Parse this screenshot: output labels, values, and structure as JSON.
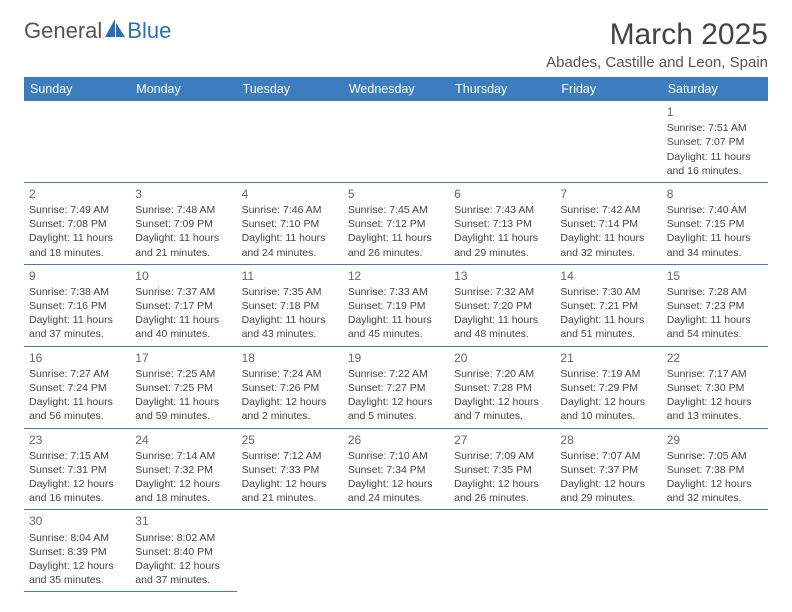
{
  "logo": {
    "text1": "General",
    "text2": "Blue",
    "accent": "#2a6fb5"
  },
  "title": "March 2025",
  "location": "Abades, Castille and Leon, Spain",
  "colors": {
    "header_bg": "#3c7dbf",
    "header_text": "#ffffff",
    "border": "#3c7dbf",
    "text": "#444444",
    "bg": "#ffffff"
  },
  "weekdays": [
    "Sunday",
    "Monday",
    "Tuesday",
    "Wednesday",
    "Thursday",
    "Friday",
    "Saturday"
  ],
  "weeks": [
    [
      null,
      null,
      null,
      null,
      null,
      null,
      {
        "n": "1",
        "sr": "7:51 AM",
        "ss": "7:07 PM",
        "dl": "11 hours and 16 minutes."
      }
    ],
    [
      {
        "n": "2",
        "sr": "7:49 AM",
        "ss": "7:08 PM",
        "dl": "11 hours and 18 minutes."
      },
      {
        "n": "3",
        "sr": "7:48 AM",
        "ss": "7:09 PM",
        "dl": "11 hours and 21 minutes."
      },
      {
        "n": "4",
        "sr": "7:46 AM",
        "ss": "7:10 PM",
        "dl": "11 hours and 24 minutes."
      },
      {
        "n": "5",
        "sr": "7:45 AM",
        "ss": "7:12 PM",
        "dl": "11 hours and 26 minutes."
      },
      {
        "n": "6",
        "sr": "7:43 AM",
        "ss": "7:13 PM",
        "dl": "11 hours and 29 minutes."
      },
      {
        "n": "7",
        "sr": "7:42 AM",
        "ss": "7:14 PM",
        "dl": "11 hours and 32 minutes."
      },
      {
        "n": "8",
        "sr": "7:40 AM",
        "ss": "7:15 PM",
        "dl": "11 hours and 34 minutes."
      }
    ],
    [
      {
        "n": "9",
        "sr": "7:38 AM",
        "ss": "7:16 PM",
        "dl": "11 hours and 37 minutes."
      },
      {
        "n": "10",
        "sr": "7:37 AM",
        "ss": "7:17 PM",
        "dl": "11 hours and 40 minutes."
      },
      {
        "n": "11",
        "sr": "7:35 AM",
        "ss": "7:18 PM",
        "dl": "11 hours and 43 minutes."
      },
      {
        "n": "12",
        "sr": "7:33 AM",
        "ss": "7:19 PM",
        "dl": "11 hours and 45 minutes."
      },
      {
        "n": "13",
        "sr": "7:32 AM",
        "ss": "7:20 PM",
        "dl": "11 hours and 48 minutes."
      },
      {
        "n": "14",
        "sr": "7:30 AM",
        "ss": "7:21 PM",
        "dl": "11 hours and 51 minutes."
      },
      {
        "n": "15",
        "sr": "7:28 AM",
        "ss": "7:23 PM",
        "dl": "11 hours and 54 minutes."
      }
    ],
    [
      {
        "n": "16",
        "sr": "7:27 AM",
        "ss": "7:24 PM",
        "dl": "11 hours and 56 minutes."
      },
      {
        "n": "17",
        "sr": "7:25 AM",
        "ss": "7:25 PM",
        "dl": "11 hours and 59 minutes."
      },
      {
        "n": "18",
        "sr": "7:24 AM",
        "ss": "7:26 PM",
        "dl": "12 hours and 2 minutes."
      },
      {
        "n": "19",
        "sr": "7:22 AM",
        "ss": "7:27 PM",
        "dl": "12 hours and 5 minutes."
      },
      {
        "n": "20",
        "sr": "7:20 AM",
        "ss": "7:28 PM",
        "dl": "12 hours and 7 minutes."
      },
      {
        "n": "21",
        "sr": "7:19 AM",
        "ss": "7:29 PM",
        "dl": "12 hours and 10 minutes."
      },
      {
        "n": "22",
        "sr": "7:17 AM",
        "ss": "7:30 PM",
        "dl": "12 hours and 13 minutes."
      }
    ],
    [
      {
        "n": "23",
        "sr": "7:15 AM",
        "ss": "7:31 PM",
        "dl": "12 hours and 16 minutes."
      },
      {
        "n": "24",
        "sr": "7:14 AM",
        "ss": "7:32 PM",
        "dl": "12 hours and 18 minutes."
      },
      {
        "n": "25",
        "sr": "7:12 AM",
        "ss": "7:33 PM",
        "dl": "12 hours and 21 minutes."
      },
      {
        "n": "26",
        "sr": "7:10 AM",
        "ss": "7:34 PM",
        "dl": "12 hours and 24 minutes."
      },
      {
        "n": "27",
        "sr": "7:09 AM",
        "ss": "7:35 PM",
        "dl": "12 hours and 26 minutes."
      },
      {
        "n": "28",
        "sr": "7:07 AM",
        "ss": "7:37 PM",
        "dl": "12 hours and 29 minutes."
      },
      {
        "n": "29",
        "sr": "7:05 AM",
        "ss": "7:38 PM",
        "dl": "12 hours and 32 minutes."
      }
    ],
    [
      {
        "n": "30",
        "sr": "8:04 AM",
        "ss": "8:39 PM",
        "dl": "12 hours and 35 minutes."
      },
      {
        "n": "31",
        "sr": "8:02 AM",
        "ss": "8:40 PM",
        "dl": "12 hours and 37 minutes."
      },
      null,
      null,
      null,
      null,
      null
    ]
  ],
  "labels": {
    "sunrise": "Sunrise:",
    "sunset": "Sunset:",
    "daylight": "Daylight:"
  }
}
